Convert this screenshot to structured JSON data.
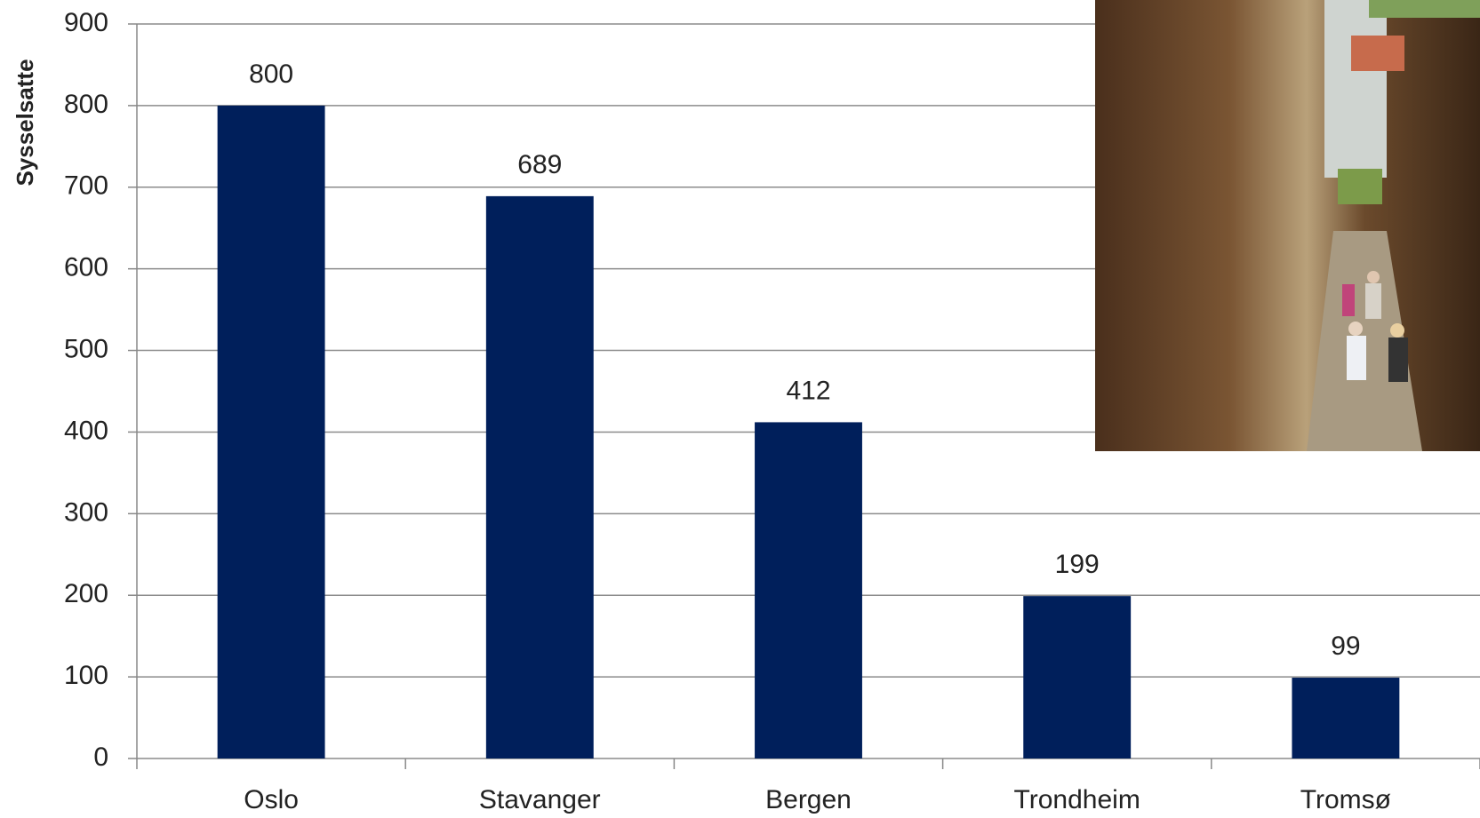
{
  "chart_data": {
    "type": "bar",
    "y_label": "Sysselsatte",
    "categories": [
      "Oslo",
      "Stavanger",
      "Bergen",
      "Trondheim",
      "Tromsø"
    ],
    "values": [
      800,
      689,
      412,
      199,
      99
    ],
    "color": "#001f5b",
    "ylim": [
      0,
      900
    ],
    "yticks": [
      0,
      100,
      200,
      300,
      400,
      500,
      600,
      700,
      800,
      900
    ],
    "grid": true
  }
}
